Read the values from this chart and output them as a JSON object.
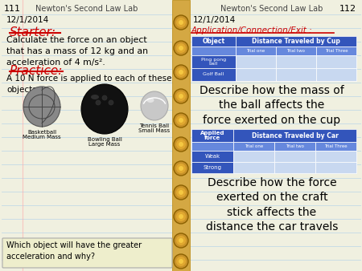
{
  "bg_color": "#f0f0e0",
  "line_color": "#b8d4e8",
  "page_num_left": "111",
  "page_num_right": "112",
  "header_left": "Newton's Second Law Lab",
  "header_right": "Newton's Second Law Lab",
  "date_left": "12/1/2014",
  "date_right": "12/1/2014",
  "starter_label": "Starter:",
  "starter_color": "#cc0000",
  "starter_text": "Calculate the force on an object\nthat has a mass of 12 kg and an\nacceleration of 4 m/s².",
  "practice_label": "Practice:",
  "practice_color": "#cc0000",
  "practice_text": "A 10 N force is applied to each of these\nobjects.",
  "bottom_question": "Which object will have the greater\nacceleration and why?",
  "app_label": "Application/Connection/Exit :",
  "app_color": "#cc0000",
  "table1_header_col1": "Object",
  "table1_header_col2": "Distance Traveled by Cup",
  "table1_sub1": "Trial one",
  "table1_sub2": "Trial two",
  "table1_sub3": "Trial Three",
  "table1_row1": "Ping pong\nball",
  "table1_row2": "Golf Ball",
  "table1_header_bg": "#3355bb",
  "table1_header_fg": "#ffffff",
  "table1_sub_bg": "#6688dd",
  "table1_sub_fg": "#ffffff",
  "table1_row_bg": "#c8d8f0",
  "table1_row_fg": "#000000",
  "describe1": "Describe how the mass of\nthe ball affects the\nforce exerted on the cup",
  "table2_header_col1": "Applied\nforce",
  "table2_header_col2": "Distance Traveled by Car",
  "table2_sub1": "Trial one",
  "table2_sub2": "Trial two",
  "table2_sub3": "Trial Three",
  "table2_row1": "Weak",
  "table2_row2": "Strong",
  "describe2": "Describe how the force\nexerted on the craft\nstick affects the\ndistance the car travels",
  "spine_color": "#d4a843",
  "spine_dot_color": "#c8922a",
  "font_main": "Comic Sans MS",
  "font_header": "Comic Sans MS"
}
